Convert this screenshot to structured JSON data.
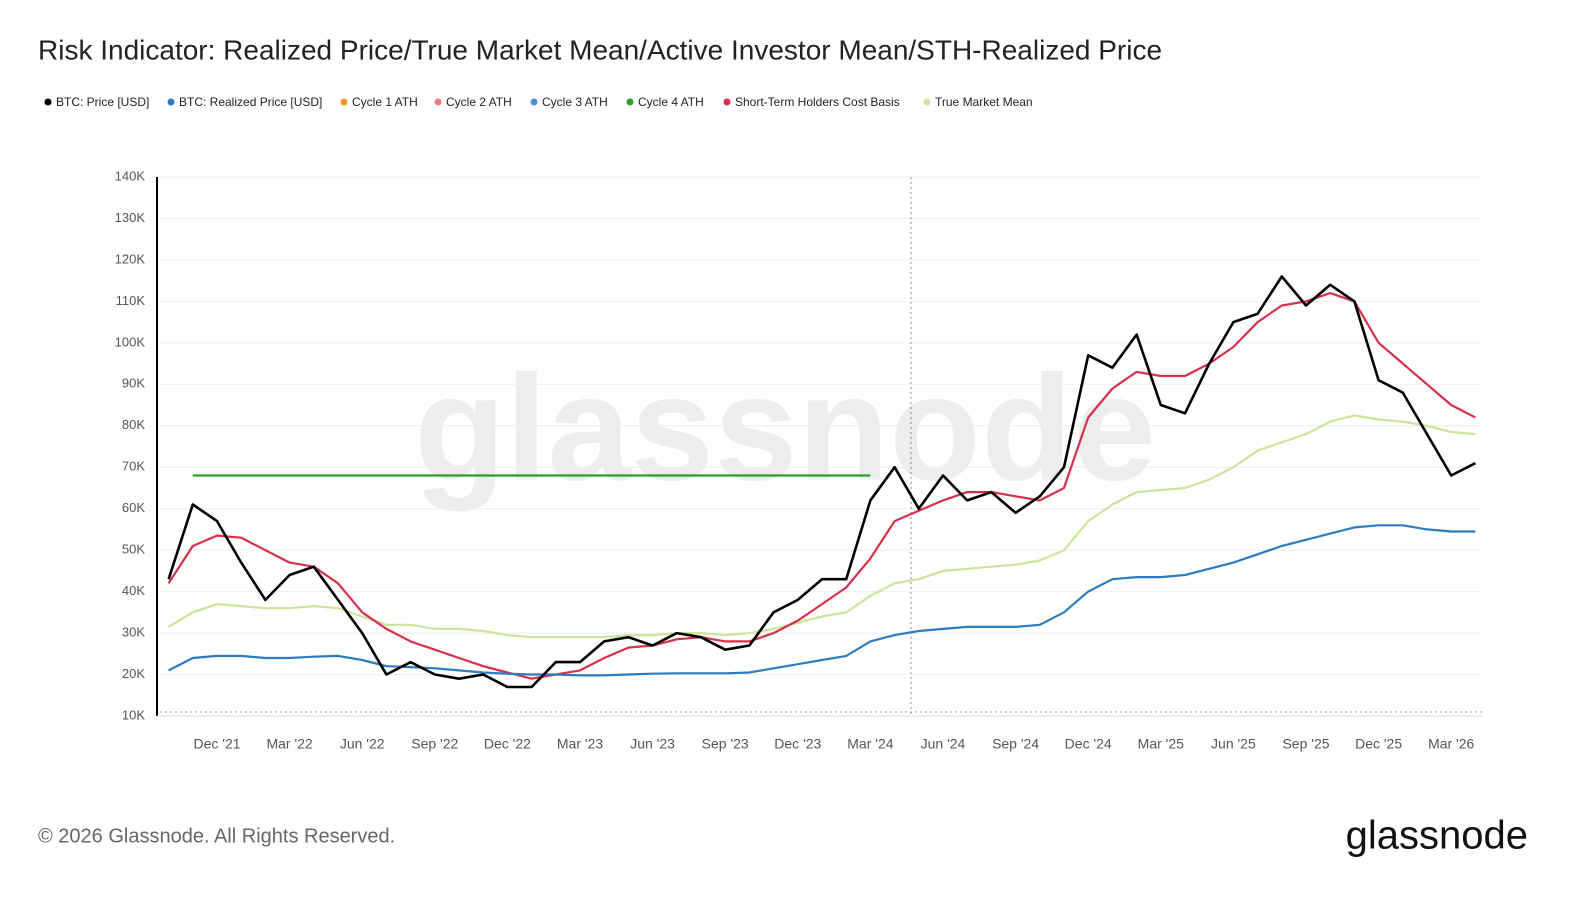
{
  "chart_data": {
    "type": "line",
    "title": "Risk Indicator: Realized Price/True Market Mean/Active Investor Mean/STH-Realized Price",
    "watermark": "glassnode",
    "footer": "© 2026 Glassnode. All Rights Reserved.",
    "logo": "glassnode",
    "x": [
      "2021-10",
      "2021-11",
      "2021-12",
      "2022-01",
      "2022-02",
      "2022-03",
      "2022-04",
      "2022-05",
      "2022-06",
      "2022-07",
      "2022-08",
      "2022-09",
      "2022-10",
      "2022-11",
      "2022-12",
      "2023-01",
      "2023-02",
      "2023-03",
      "2023-04",
      "2023-05",
      "2023-06",
      "2023-07",
      "2023-08",
      "2023-09",
      "2023-10",
      "2023-11",
      "2023-12",
      "2024-01",
      "2024-02",
      "2024-03",
      "2024-04",
      "2024-05",
      "2024-06",
      "2024-07",
      "2024-08",
      "2024-09",
      "2024-10",
      "2024-11",
      "2024-12",
      "2025-01",
      "2025-02",
      "2025-03",
      "2025-04",
      "2025-05",
      "2025-06",
      "2025-07",
      "2025-08",
      "2025-09",
      "2025-10",
      "2025-11",
      "2025-12",
      "2026-01",
      "2026-02",
      "2026-03",
      "2026-04"
    ],
    "xticks": [
      {
        "value": "2021-12",
        "label": "Dec '21"
      },
      {
        "value": "2022-03",
        "label": "Mar '22"
      },
      {
        "value": "2022-06",
        "label": "Jun '22"
      },
      {
        "value": "2022-09",
        "label": "Sep '22"
      },
      {
        "value": "2022-12",
        "label": "Dec '22"
      },
      {
        "value": "2023-03",
        "label": "Mar '23"
      },
      {
        "value": "2023-06",
        "label": "Jun '23"
      },
      {
        "value": "2023-09",
        "label": "Sep '23"
      },
      {
        "value": "2023-12",
        "label": "Dec '23"
      },
      {
        "value": "2024-03",
        "label": "Mar '24"
      },
      {
        "value": "2024-06",
        "label": "Jun '24"
      },
      {
        "value": "2024-09",
        "label": "Sep '24"
      },
      {
        "value": "2024-12",
        "label": "Dec '24"
      },
      {
        "value": "2025-03",
        "label": "Mar '25"
      },
      {
        "value": "2025-06",
        "label": "Jun '25"
      },
      {
        "value": "2025-09",
        "label": "Sep '25"
      },
      {
        "value": "2025-12",
        "label": "Dec '25"
      },
      {
        "value": "2026-03",
        "label": "Mar '26"
      }
    ],
    "ylim": [
      10000,
      140000
    ],
    "yticks": [
      {
        "value": 10000,
        "label": "10K"
      },
      {
        "value": 20000,
        "label": "20K"
      },
      {
        "value": 30000,
        "label": "30K"
      },
      {
        "value": 40000,
        "label": "40K"
      },
      {
        "value": 50000,
        "label": "50K"
      },
      {
        "value": 60000,
        "label": "60K"
      },
      {
        "value": 70000,
        "label": "70K"
      },
      {
        "value": 80000,
        "label": "80K"
      },
      {
        "value": 90000,
        "label": "90K"
      },
      {
        "value": 100000,
        "label": "100K"
      },
      {
        "value": 110000,
        "label": "110K"
      },
      {
        "value": 120000,
        "label": "120K"
      },
      {
        "value": 130000,
        "label": "130K"
      },
      {
        "value": 140000,
        "label": "140K"
      }
    ],
    "grid": true,
    "series": [
      {
        "name": "BTC: Price [USD]",
        "color": "#000000",
        "values": [
          43000,
          61000,
          57000,
          47000,
          38000,
          44000,
          46000,
          38000,
          30000,
          20000,
          23000,
          20000,
          19000,
          20000,
          17000,
          17000,
          23000,
          23000,
          28000,
          29000,
          27000,
          30000,
          29000,
          26000,
          27000,
          35000,
          38000,
          43000,
          43000,
          62000,
          70000,
          60000,
          68000,
          62000,
          64000,
          59000,
          63000,
          70000,
          97000,
          94000,
          102000,
          85000,
          83000,
          95000,
          105000,
          107000,
          116000,
          109000,
          114000,
          110000,
          91000,
          88000,
          78000,
          68000,
          71000
        ]
      },
      {
        "name": "BTC: Realized Price [USD]",
        "color": "#2e7bbf",
        "values": [
          21000,
          24000,
          24500,
          24500,
          24000,
          24000,
          24300,
          24500,
          23500,
          22000,
          21800,
          21500,
          21000,
          20500,
          20200,
          20000,
          20000,
          19800,
          19800,
          20000,
          20200,
          20300,
          20300,
          20300,
          20500,
          21500,
          22500,
          23500,
          24500,
          28000,
          29500,
          30500,
          31000,
          31500,
          31500,
          31500,
          32000,
          35000,
          40000,
          43000,
          43500,
          43500,
          44000,
          45500,
          47000,
          49000,
          51000,
          52500,
          54000,
          55500,
          56000,
          56000,
          55000,
          54500,
          54500
        ]
      },
      {
        "name": "Cycle 1 ATH",
        "color": "#f7931a",
        "values": [
          null,
          null,
          null,
          null,
          null,
          null,
          null,
          null,
          null,
          null,
          null,
          null,
          null,
          null,
          null,
          null,
          null,
          null,
          null,
          null,
          null,
          null,
          null,
          null,
          null,
          null,
          null,
          null,
          null,
          null,
          null,
          null,
          null,
          null,
          null,
          null,
          null,
          null,
          null,
          null,
          null,
          null,
          null,
          null,
          null,
          null,
          null,
          null,
          null,
          null,
          null,
          null,
          null,
          null,
          null
        ]
      },
      {
        "name": "Cycle 2 ATH",
        "color": "#f07a7a",
        "values": [
          null,
          null,
          null,
          null,
          null,
          null,
          null,
          null,
          null,
          null,
          null,
          null,
          null,
          null,
          null,
          null,
          null,
          null,
          null,
          null,
          null,
          null,
          null,
          null,
          null,
          null,
          null,
          null,
          null,
          null,
          null,
          null,
          null,
          null,
          null,
          null,
          null,
          null,
          null,
          null,
          null,
          null,
          null,
          null,
          null,
          null,
          null,
          null,
          null,
          null,
          null,
          null,
          null,
          null,
          null
        ]
      },
      {
        "name": "Cycle 3 ATH",
        "color": "#4a90e2",
        "values": [
          null,
          null,
          null,
          null,
          null,
          null,
          null,
          null,
          null,
          null,
          null,
          null,
          null,
          null,
          null,
          null,
          null,
          null,
          null,
          null,
          null,
          null,
          null,
          null,
          null,
          null,
          null,
          null,
          null,
          null,
          null,
          null,
          null,
          null,
          null,
          null,
          null,
          null,
          null,
          null,
          null,
          null,
          null,
          null,
          null,
          null,
          null,
          null,
          null,
          null,
          null,
          null,
          null,
          null,
          null
        ]
      },
      {
        "name": "Cycle 4 ATH",
        "color": "#2aa02a",
        "values": [
          null,
          68000,
          68000,
          68000,
          68000,
          68000,
          68000,
          68000,
          68000,
          68000,
          68000,
          68000,
          68000,
          68000,
          68000,
          68000,
          68000,
          68000,
          68000,
          68000,
          68000,
          68000,
          68000,
          68000,
          68000,
          68000,
          68000,
          68000,
          68000,
          68000,
          null,
          null,
          null,
          null,
          null,
          null,
          null,
          null,
          null,
          null,
          null,
          null,
          null,
          null,
          null,
          null,
          null,
          null,
          null,
          null,
          null,
          null,
          null,
          null,
          null
        ]
      },
      {
        "name": "Short-Term Holders Cost Basis",
        "color": "#d6304a",
        "values": [
          42000,
          51000,
          53500,
          53000,
          50000,
          47000,
          46000,
          42000,
          35000,
          31000,
          28000,
          26000,
          24000,
          22000,
          20500,
          19000,
          20000,
          21000,
          24000,
          26500,
          27000,
          28500,
          29000,
          28000,
          28000,
          30000,
          33000,
          37000,
          41000,
          48000,
          57000,
          59500,
          62000,
          64000,
          64000,
          63000,
          62000,
          65000,
          82000,
          89000,
          93000,
          92000,
          92000,
          95000,
          99000,
          105000,
          109000,
          110000,
          112000,
          110000,
          100000,
          95000,
          90000,
          85000,
          82000
        ]
      },
      {
        "name": "True Market Mean",
        "color": "#c9e59a",
        "values": [
          31500,
          35000,
          37000,
          36500,
          36000,
          36000,
          36500,
          36000,
          34000,
          32000,
          32000,
          31000,
          31000,
          30500,
          29500,
          29000,
          29000,
          29000,
          29000,
          29500,
          29500,
          30000,
          30000,
          29500,
          30000,
          31000,
          32500,
          34000,
          35000,
          39000,
          42000,
          43000,
          45000,
          45500,
          46000,
          46500,
          47500,
          50000,
          57000,
          61000,
          64000,
          64500,
          65000,
          67000,
          70000,
          74000,
          76000,
          78000,
          81000,
          82500,
          81500,
          81000,
          80000,
          78500,
          78000
        ]
      }
    ]
  }
}
